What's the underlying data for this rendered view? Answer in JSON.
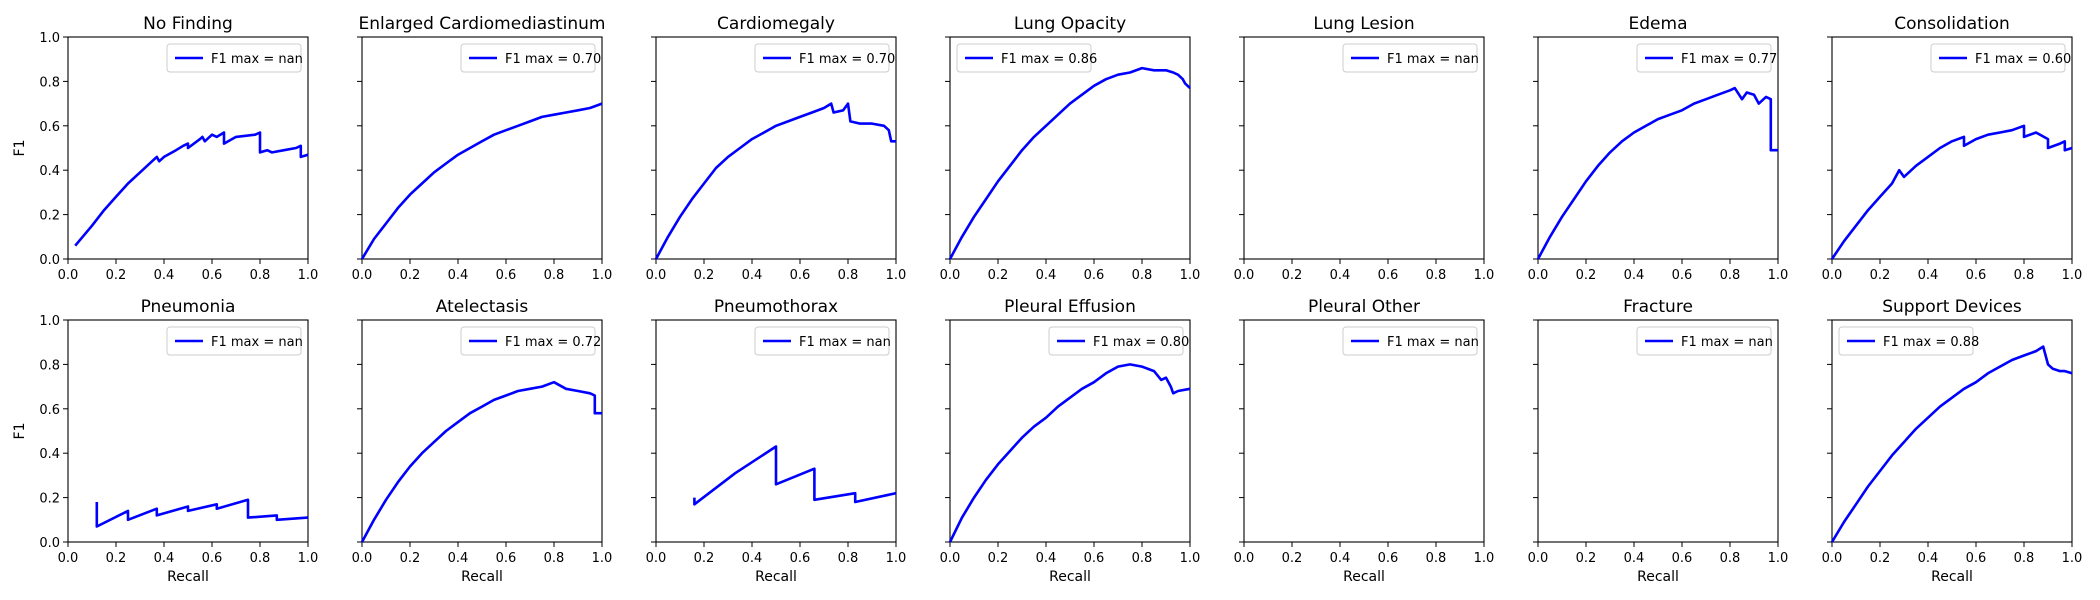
{
  "chart_data": {
    "type": "line",
    "ylabel": "F1",
    "xlabel": "Recall",
    "xlim": [
      0,
      1
    ],
    "ylim": [
      0,
      1
    ],
    "xticks": [
      "0.0",
      "0.2",
      "0.4",
      "0.6",
      "0.8",
      "1.0"
    ],
    "yticks": [
      "0.0",
      "0.2",
      "0.4",
      "0.6",
      "0.8",
      "1.0"
    ],
    "grid": false,
    "legend_position": "top-right",
    "line_color": "#0000ff",
    "panels": [
      {
        "title": "No Finding",
        "legend": "F1 max = nan",
        "legend_position": "top-right",
        "x": [
          0.03,
          0.1,
          0.15,
          0.2,
          0.25,
          0.3,
          0.35,
          0.37,
          0.38,
          0.4,
          0.45,
          0.48,
          0.5,
          0.5,
          0.55,
          0.56,
          0.57,
          0.6,
          0.62,
          0.65,
          0.65,
          0.7,
          0.78,
          0.8,
          0.8,
          0.83,
          0.85,
          0.9,
          0.95,
          0.97,
          0.97,
          1.0
        ],
        "y": [
          0.06,
          0.15,
          0.22,
          0.28,
          0.34,
          0.39,
          0.44,
          0.46,
          0.44,
          0.46,
          0.49,
          0.51,
          0.52,
          0.5,
          0.54,
          0.55,
          0.53,
          0.56,
          0.55,
          0.57,
          0.52,
          0.55,
          0.56,
          0.57,
          0.48,
          0.49,
          0.48,
          0.49,
          0.5,
          0.51,
          0.46,
          0.47
        ]
      },
      {
        "title": "Enlarged Cardiomediastinum",
        "legend": "F1 max = 0.70",
        "legend_position": "top-right",
        "x": [
          0.0,
          0.05,
          0.1,
          0.15,
          0.2,
          0.25,
          0.3,
          0.35,
          0.4,
          0.45,
          0.5,
          0.55,
          0.6,
          0.65,
          0.7,
          0.75,
          0.8,
          0.85,
          0.9,
          0.95,
          1.0
        ],
        "y": [
          0.0,
          0.09,
          0.16,
          0.23,
          0.29,
          0.34,
          0.39,
          0.43,
          0.47,
          0.5,
          0.53,
          0.56,
          0.58,
          0.6,
          0.62,
          0.64,
          0.65,
          0.66,
          0.67,
          0.68,
          0.7
        ]
      },
      {
        "title": "Cardiomegaly",
        "legend": "F1 max = 0.70",
        "legend_position": "top-right",
        "x": [
          0.0,
          0.05,
          0.1,
          0.15,
          0.2,
          0.25,
          0.3,
          0.35,
          0.4,
          0.45,
          0.5,
          0.55,
          0.6,
          0.65,
          0.7,
          0.73,
          0.74,
          0.78,
          0.8,
          0.81,
          0.85,
          0.9,
          0.95,
          0.97,
          0.98,
          1.0
        ],
        "y": [
          0.0,
          0.1,
          0.19,
          0.27,
          0.34,
          0.41,
          0.46,
          0.5,
          0.54,
          0.57,
          0.6,
          0.62,
          0.64,
          0.66,
          0.68,
          0.7,
          0.66,
          0.67,
          0.7,
          0.62,
          0.61,
          0.61,
          0.6,
          0.58,
          0.53,
          0.53
        ]
      },
      {
        "title": "Lung Opacity",
        "legend": "F1 max = 0.86",
        "legend_position": "top-left",
        "x": [
          0.0,
          0.05,
          0.1,
          0.15,
          0.2,
          0.25,
          0.3,
          0.35,
          0.4,
          0.45,
          0.5,
          0.55,
          0.6,
          0.65,
          0.7,
          0.75,
          0.8,
          0.85,
          0.9,
          0.93,
          0.95,
          0.97,
          0.98,
          0.99,
          1.0
        ],
        "y": [
          0.0,
          0.1,
          0.19,
          0.27,
          0.35,
          0.42,
          0.49,
          0.55,
          0.6,
          0.65,
          0.7,
          0.74,
          0.78,
          0.81,
          0.83,
          0.84,
          0.86,
          0.85,
          0.85,
          0.84,
          0.83,
          0.81,
          0.79,
          0.78,
          0.77
        ]
      },
      {
        "title": "Lung Lesion",
        "legend": "F1 max = nan",
        "legend_position": "top-right",
        "x": [],
        "y": []
      },
      {
        "title": "Edema",
        "legend": "F1 max = 0.77",
        "legend_position": "top-right",
        "x": [
          0.0,
          0.05,
          0.1,
          0.15,
          0.2,
          0.25,
          0.3,
          0.35,
          0.4,
          0.45,
          0.5,
          0.55,
          0.6,
          0.65,
          0.7,
          0.75,
          0.8,
          0.82,
          0.85,
          0.87,
          0.9,
          0.92,
          0.95,
          0.97,
          0.97,
          1.0
        ],
        "y": [
          0.0,
          0.1,
          0.19,
          0.27,
          0.35,
          0.42,
          0.48,
          0.53,
          0.57,
          0.6,
          0.63,
          0.65,
          0.67,
          0.7,
          0.72,
          0.74,
          0.76,
          0.77,
          0.72,
          0.75,
          0.74,
          0.7,
          0.73,
          0.72,
          0.49,
          0.49
        ]
      },
      {
        "title": "Consolidation",
        "legend": "F1 max = 0.60",
        "legend_position": "top-right",
        "x": [
          0.0,
          0.05,
          0.1,
          0.15,
          0.2,
          0.25,
          0.28,
          0.3,
          0.35,
          0.4,
          0.45,
          0.5,
          0.55,
          0.55,
          0.6,
          0.65,
          0.7,
          0.75,
          0.8,
          0.8,
          0.85,
          0.9,
          0.9,
          0.95,
          0.97,
          0.97,
          1.0
        ],
        "y": [
          0.0,
          0.08,
          0.15,
          0.22,
          0.28,
          0.34,
          0.4,
          0.37,
          0.42,
          0.46,
          0.5,
          0.53,
          0.55,
          0.51,
          0.54,
          0.56,
          0.57,
          0.58,
          0.6,
          0.55,
          0.57,
          0.54,
          0.5,
          0.52,
          0.53,
          0.49,
          0.5
        ]
      },
      {
        "title": "Pneumonia",
        "legend": "F1 max = nan",
        "legend_position": "top-right",
        "x": [
          0.12,
          0.12,
          0.25,
          0.25,
          0.37,
          0.37,
          0.5,
          0.5,
          0.62,
          0.62,
          0.75,
          0.75,
          0.87,
          0.87,
          1.0
        ],
        "y": [
          0.18,
          0.07,
          0.14,
          0.1,
          0.15,
          0.12,
          0.16,
          0.14,
          0.17,
          0.15,
          0.19,
          0.11,
          0.12,
          0.1,
          0.11
        ]
      },
      {
        "title": "Atelectasis",
        "legend": "F1 max = 0.72",
        "legend_position": "top-right",
        "x": [
          0.0,
          0.05,
          0.1,
          0.15,
          0.2,
          0.25,
          0.3,
          0.35,
          0.4,
          0.45,
          0.5,
          0.55,
          0.6,
          0.65,
          0.7,
          0.75,
          0.8,
          0.85,
          0.9,
          0.95,
          0.97,
          0.97,
          1.0
        ],
        "y": [
          0.0,
          0.1,
          0.19,
          0.27,
          0.34,
          0.4,
          0.45,
          0.5,
          0.54,
          0.58,
          0.61,
          0.64,
          0.66,
          0.68,
          0.69,
          0.7,
          0.72,
          0.69,
          0.68,
          0.67,
          0.66,
          0.58,
          0.58
        ]
      },
      {
        "title": "Pneumothorax",
        "legend": "F1 max = nan",
        "legend_position": "top-right",
        "x": [
          0.16,
          0.16,
          0.33,
          0.5,
          0.5,
          0.66,
          0.66,
          0.83,
          0.83,
          1.0
        ],
        "y": [
          0.2,
          0.17,
          0.31,
          0.43,
          0.26,
          0.33,
          0.19,
          0.22,
          0.18,
          0.22
        ]
      },
      {
        "title": "Pleural Effusion",
        "legend": "F1 max = 0.80",
        "legend_position": "top-right",
        "x": [
          0.0,
          0.05,
          0.1,
          0.15,
          0.2,
          0.25,
          0.3,
          0.35,
          0.4,
          0.45,
          0.5,
          0.55,
          0.6,
          0.65,
          0.7,
          0.75,
          0.8,
          0.85,
          0.88,
          0.9,
          0.92,
          0.93,
          0.95,
          1.0
        ],
        "y": [
          0.0,
          0.11,
          0.2,
          0.28,
          0.35,
          0.41,
          0.47,
          0.52,
          0.56,
          0.61,
          0.65,
          0.69,
          0.72,
          0.76,
          0.79,
          0.8,
          0.79,
          0.77,
          0.73,
          0.74,
          0.7,
          0.67,
          0.68,
          0.69
        ]
      },
      {
        "title": "Pleural Other",
        "legend": "F1 max = nan",
        "legend_position": "top-right",
        "x": [],
        "y": []
      },
      {
        "title": "Fracture",
        "legend": "F1 max = nan",
        "legend_position": "top-right",
        "x": [],
        "y": []
      },
      {
        "title": "Support Devices",
        "legend": "F1 max = 0.88",
        "legend_position": "top-left",
        "x": [
          0.0,
          0.05,
          0.1,
          0.15,
          0.2,
          0.25,
          0.3,
          0.35,
          0.4,
          0.45,
          0.5,
          0.55,
          0.6,
          0.65,
          0.7,
          0.75,
          0.8,
          0.85,
          0.88,
          0.9,
          0.92,
          0.95,
          0.97,
          1.0
        ],
        "y": [
          0.0,
          0.09,
          0.17,
          0.25,
          0.32,
          0.39,
          0.45,
          0.51,
          0.56,
          0.61,
          0.65,
          0.69,
          0.72,
          0.76,
          0.79,
          0.82,
          0.84,
          0.86,
          0.88,
          0.8,
          0.78,
          0.77,
          0.77,
          0.76
        ]
      }
    ]
  }
}
